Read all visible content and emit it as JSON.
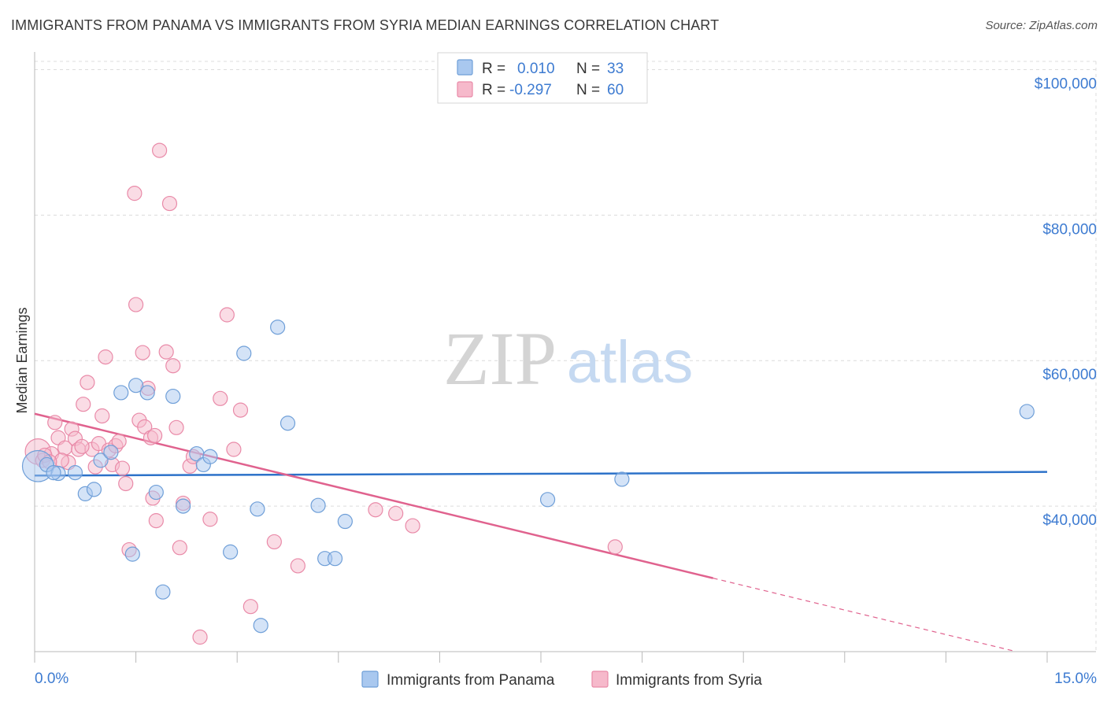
{
  "header": {
    "title": "IMMIGRANTS FROM PANAMA VS IMMIGRANTS FROM SYRIA MEDIAN EARNINGS CORRELATION CHART",
    "source": "Source: ZipAtlas.com"
  },
  "watermark": {
    "zip": "ZIP",
    "atlas": "atlas"
  },
  "legend_top": {
    "rows": [
      {
        "r_label": "R =",
        "r_value": "0.010",
        "n_label": "N =",
        "n_value": "33"
      },
      {
        "r_label": "R =",
        "r_value": "-0.297",
        "n_label": "N =",
        "n_value": "60"
      }
    ]
  },
  "colors": {
    "panama_fill": "#a9c8ef",
    "panama_stroke": "#6f9fd8",
    "panama_line": "#2d72c9",
    "syria_fill": "#f6b9cb",
    "syria_stroke": "#e98aa8",
    "syria_line": "#e0628e",
    "value_text": "#3d7bd1",
    "grid": "#dcdcdc"
  },
  "chart_data": {
    "type": "scatter",
    "title": "IMMIGRANTS FROM PANAMA VS IMMIGRANTS FROM SYRIA MEDIAN EARNINGS CORRELATION CHART",
    "xlabel": "",
    "ylabel": "Median Earnings",
    "xlim": [
      0,
      15
    ],
    "ylim": [
      20000,
      102000
    ],
    "x_tick_labels": [
      "0.0%",
      "15.0%"
    ],
    "y_ticks": [
      40000,
      60000,
      80000,
      100000
    ],
    "y_tick_labels": [
      "$40,000",
      "$60,000",
      "$80,000",
      "$100,000"
    ],
    "grid": true,
    "legend_position": "bottom",
    "series": [
      {
        "name": "Immigrants from Panama",
        "r": 0.01,
        "n": 33,
        "trend": {
          "x": [
            0,
            15
          ],
          "y": [
            44200,
            44700
          ]
        },
        "points": [
          [
            0.05,
            45500,
            2.2
          ],
          [
            0.18,
            45700,
            1.0
          ],
          [
            0.35,
            44500,
            1.0
          ],
          [
            0.6,
            44600,
            1.0
          ],
          [
            0.75,
            41700,
            1.0
          ],
          [
            0.88,
            42300,
            1.0
          ],
          [
            0.98,
            46300,
            1.0
          ],
          [
            1.13,
            47400,
            1.0
          ],
          [
            1.28,
            55600,
            1.0
          ],
          [
            1.5,
            56600,
            1.0
          ],
          [
            1.67,
            55600,
            1.0
          ],
          [
            1.45,
            33400,
            1.0
          ],
          [
            1.8,
            41900,
            1.0
          ],
          [
            1.9,
            28200,
            1.0
          ],
          [
            2.05,
            55100,
            1.0
          ],
          [
            2.2,
            40000,
            1.0
          ],
          [
            2.4,
            47200,
            1.0
          ],
          [
            2.5,
            45700,
            1.0
          ],
          [
            2.6,
            46800,
            1.0
          ],
          [
            2.9,
            33700,
            1.0
          ],
          [
            3.1,
            61000,
            1.0
          ],
          [
            3.3,
            39600,
            1.0
          ],
          [
            3.35,
            23600,
            1.0
          ],
          [
            3.6,
            64600,
            1.0
          ],
          [
            3.75,
            51400,
            1.0
          ],
          [
            4.2,
            40100,
            1.0
          ],
          [
            4.3,
            32800,
            1.0
          ],
          [
            4.45,
            32800,
            1.0
          ],
          [
            4.6,
            37900,
            1.0
          ],
          [
            7.6,
            40900,
            1.0
          ],
          [
            8.7,
            43700,
            1.0
          ],
          [
            14.7,
            53000,
            1.0
          ],
          [
            0.28,
            44600,
            1.0
          ]
        ]
      },
      {
        "name": "Immigrants from Syria",
        "r": -0.297,
        "n": 60,
        "trend": {
          "x": [
            0,
            10.05
          ],
          "y": [
            52700,
            30100
          ]
        },
        "trend_dashed": {
          "x": [
            10.05,
            14.5
          ],
          "y": [
            30100,
            20100
          ]
        },
        "points": [
          [
            0.05,
            47500,
            1.8
          ],
          [
            0.12,
            46300,
            1.0
          ],
          [
            0.25,
            47200,
            1.0
          ],
          [
            0.3,
            51500,
            1.0
          ],
          [
            0.35,
            49400,
            1.0
          ],
          [
            0.45,
            48000,
            1.0
          ],
          [
            0.5,
            46000,
            1.0
          ],
          [
            0.55,
            50600,
            1.0
          ],
          [
            0.6,
            49300,
            1.0
          ],
          [
            0.65,
            47800,
            1.0
          ],
          [
            0.72,
            54000,
            1.0
          ],
          [
            0.78,
            57000,
            1.0
          ],
          [
            0.85,
            47800,
            1.0
          ],
          [
            0.9,
            45400,
            1.0
          ],
          [
            0.95,
            48600,
            1.0
          ],
          [
            1.0,
            52400,
            1.0
          ],
          [
            1.05,
            60500,
            1.0
          ],
          [
            1.1,
            47700,
            1.0
          ],
          [
            1.15,
            45700,
            1.0
          ],
          [
            1.2,
            48300,
            1.0
          ],
          [
            1.25,
            48900,
            1.0
          ],
          [
            1.3,
            45200,
            1.0
          ],
          [
            1.35,
            43100,
            1.0
          ],
          [
            1.4,
            34000,
            1.0
          ],
          [
            1.48,
            83000,
            1.0
          ],
          [
            1.5,
            67700,
            1.0
          ],
          [
            1.55,
            51800,
            1.0
          ],
          [
            1.6,
            61100,
            1.0
          ],
          [
            1.63,
            50900,
            1.0
          ],
          [
            1.68,
            56200,
            1.0
          ],
          [
            1.72,
            49400,
            1.0
          ],
          [
            1.75,
            41100,
            1.0
          ],
          [
            1.8,
            38000,
            1.0
          ],
          [
            1.85,
            88900,
            1.0
          ],
          [
            1.95,
            61200,
            1.0
          ],
          [
            2.0,
            81600,
            1.0
          ],
          [
            2.05,
            59300,
            1.0
          ],
          [
            2.1,
            50800,
            1.0
          ],
          [
            2.15,
            34300,
            1.0
          ],
          [
            2.2,
            40400,
            1.0
          ],
          [
            2.3,
            45500,
            1.0
          ],
          [
            2.35,
            46800,
            1.0
          ],
          [
            2.45,
            22000,
            1.0
          ],
          [
            2.6,
            38200,
            1.0
          ],
          [
            2.75,
            54800,
            1.0
          ],
          [
            2.85,
            66300,
            1.0
          ],
          [
            3.05,
            53200,
            1.0
          ],
          [
            3.2,
            26200,
            1.0
          ],
          [
            3.55,
            35100,
            1.0
          ],
          [
            3.9,
            31800,
            1.0
          ],
          [
            2.95,
            47800,
            1.0
          ],
          [
            5.05,
            39500,
            1.0
          ],
          [
            5.35,
            39000,
            1.0
          ],
          [
            5.6,
            37300,
            1.0
          ],
          [
            8.6,
            34400,
            1.0
          ],
          [
            1.78,
            49700,
            1.0
          ],
          [
            0.4,
            46300,
            1.0
          ],
          [
            0.7,
            48200,
            1.0
          ],
          [
            0.15,
            47000,
            1.0
          ],
          [
            0.22,
            46100,
            1.0
          ]
        ]
      }
    ]
  }
}
